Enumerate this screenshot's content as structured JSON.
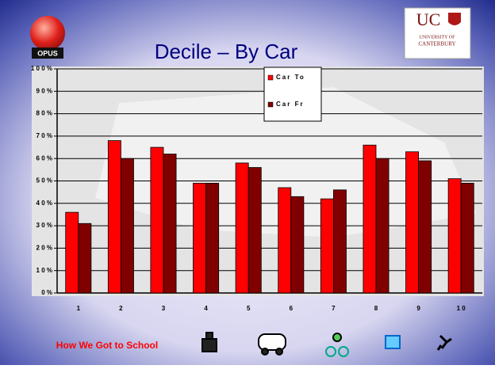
{
  "chart_data": {
    "type": "bar",
    "title": "Decile – By Car",
    "footer": "How We Got to School",
    "logo_left": "OPUS",
    "logo_right": {
      "mark": "UC",
      "line1": "UNIVERSITY OF",
      "line2": "CANTERBURY"
    },
    "categories": [
      "1",
      "2",
      "3",
      "4",
      "5",
      "6",
      "7",
      "8",
      "9",
      "1 0"
    ],
    "series": [
      {
        "name": "Car To",
        "color": "#ff0000",
        "values": [
          36,
          68,
          65,
          49,
          58,
          47,
          42,
          66,
          63,
          51
        ]
      },
      {
        "name": "Car Fr",
        "color": "#800000",
        "values": [
          31,
          60,
          62,
          49,
          56,
          43,
          46,
          60,
          59,
          49
        ]
      }
    ],
    "ylim": [
      0,
      100
    ],
    "yticks": [
      {
        "value": 0,
        "label": "0 %"
      },
      {
        "value": 10,
        "label": "1 0 %"
      },
      {
        "value": 20,
        "label": "2 0 %"
      },
      {
        "value": 30,
        "label": "3 0 %"
      },
      {
        "value": 40,
        "label": "4 0 %"
      },
      {
        "value": 50,
        "label": "5 0 %"
      },
      {
        "value": 60,
        "label": "6 0 %"
      },
      {
        "value": 70,
        "label": "7 0 %"
      },
      {
        "value": 80,
        "label": "8 0 %"
      },
      {
        "value": 90,
        "label": "9 0 %"
      },
      {
        "value": 100,
        "label": "1 0 0 %"
      }
    ],
    "grid": true,
    "legend": "top-right"
  }
}
